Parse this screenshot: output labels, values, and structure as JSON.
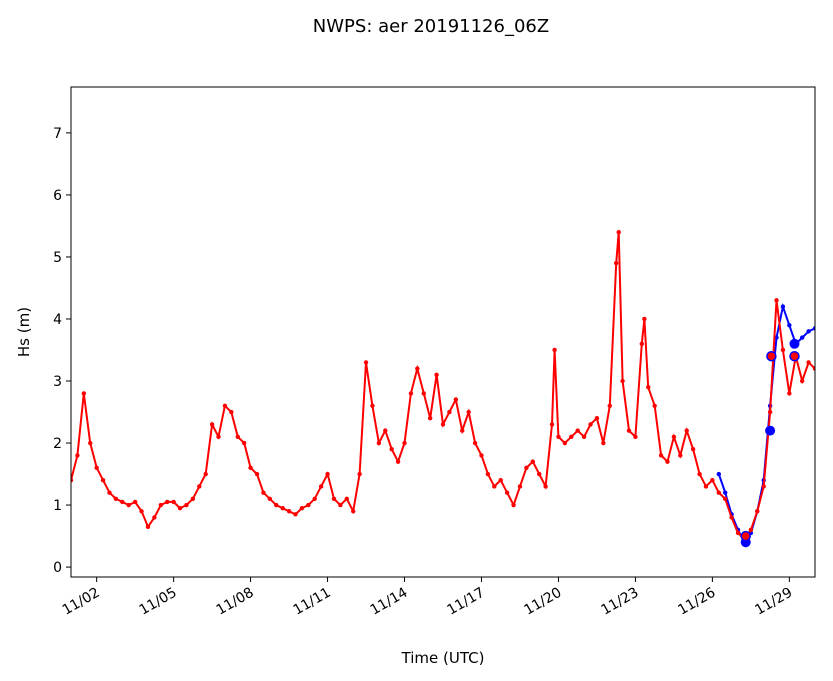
{
  "chart_data": {
    "type": "line",
    "title": "NWPS: aer 20191126_06Z",
    "xlabel": "Time (UTC)",
    "ylabel": "Hs (m)",
    "xlim": [
      1,
      30
    ],
    "ylim": [
      -0.16,
      7.74
    ],
    "xticks": [
      {
        "value": 2,
        "label": "11/02"
      },
      {
        "value": 5,
        "label": "11/05"
      },
      {
        "value": 8,
        "label": "11/08"
      },
      {
        "value": 11,
        "label": "11/11"
      },
      {
        "value": 14,
        "label": "11/14"
      },
      {
        "value": 17,
        "label": "11/17"
      },
      {
        "value": 20,
        "label": "11/20"
      },
      {
        "value": 23,
        "label": "11/23"
      },
      {
        "value": 26,
        "label": "11/26"
      },
      {
        "value": 29,
        "label": "11/29"
      }
    ],
    "yticks": [
      0,
      1,
      2,
      3,
      4,
      5,
      6,
      7
    ],
    "series": [
      {
        "color": "#0000ff",
        "line": true,
        "marker_size": 2.2,
        "x": [
          26.25,
          26.5,
          26.75,
          27.0,
          27.25,
          27.5,
          27.75,
          28.0,
          28.25,
          28.5,
          28.75,
          29.0,
          29.25,
          29.5,
          29.75,
          30.0
        ],
        "values": [
          1.5,
          1.2,
          0.85,
          0.6,
          0.4,
          0.55,
          0.9,
          1.4,
          2.6,
          3.7,
          4.2,
          3.9,
          3.6,
          3.7,
          3.8,
          3.85
        ]
      },
      {
        "color": "#ff0000",
        "line": true,
        "marker_size": 2.2,
        "x": [
          1.0,
          1.25,
          1.5,
          1.75,
          2.0,
          2.25,
          2.5,
          2.75,
          3.0,
          3.25,
          3.5,
          3.75,
          4.0,
          4.25,
          4.5,
          4.75,
          5.0,
          5.25,
          5.5,
          5.75,
          6.0,
          6.25,
          6.5,
          6.75,
          7.0,
          7.25,
          7.5,
          7.75,
          8.0,
          8.25,
          8.5,
          8.75,
          9.0,
          9.25,
          9.5,
          9.75,
          10.0,
          10.25,
          10.5,
          10.75,
          11.0,
          11.25,
          11.5,
          11.75,
          12.0,
          12.25,
          12.5,
          12.75,
          13.0,
          13.25,
          13.5,
          13.75,
          14.0,
          14.25,
          14.5,
          14.75,
          15.0,
          15.25,
          15.5,
          15.75,
          16.0,
          16.25,
          16.5,
          16.75,
          17.0,
          17.25,
          17.5,
          17.75,
          18.0,
          18.25,
          18.5,
          18.75,
          19.0,
          19.25,
          19.5,
          19.75,
          19.85,
          20.0,
          20.25,
          20.5,
          20.75,
          21.0,
          21.25,
          21.5,
          21.75,
          22.0,
          22.25,
          22.35,
          22.5,
          22.75,
          23.0,
          23.25,
          23.35,
          23.5,
          23.75,
          24.0,
          24.25,
          24.5,
          24.75,
          25.0,
          25.25,
          25.5,
          25.75,
          26.0,
          26.25,
          26.5,
          26.75,
          27.0,
          27.25,
          27.5,
          27.75,
          28.0,
          28.25,
          28.5,
          28.75,
          29.0,
          29.25,
          29.5,
          29.75,
          30.0
        ],
        "values": [
          1.4,
          1.8,
          2.8,
          2.0,
          1.6,
          1.4,
          1.2,
          1.1,
          1.05,
          1.0,
          1.05,
          0.9,
          0.65,
          0.8,
          1.0,
          1.05,
          1.05,
          0.95,
          1.0,
          1.1,
          1.3,
          1.5,
          2.3,
          2.1,
          2.6,
          2.5,
          2.1,
          2.0,
          1.6,
          1.5,
          1.2,
          1.1,
          1.0,
          0.95,
          0.9,
          0.85,
          0.95,
          1.0,
          1.1,
          1.3,
          1.5,
          1.1,
          1.0,
          1.1,
          0.9,
          1.5,
          3.3,
          2.6,
          2.0,
          2.2,
          1.9,
          1.7,
          2.0,
          2.8,
          3.2,
          2.8,
          2.4,
          3.1,
          2.3,
          2.5,
          2.7,
          2.2,
          2.5,
          2.0,
          1.8,
          1.5,
          1.3,
          1.4,
          1.2,
          1.0,
          1.3,
          1.6,
          1.7,
          1.5,
          1.3,
          2.3,
          3.5,
          2.1,
          2.0,
          2.1,
          2.2,
          2.1,
          2.3,
          2.4,
          2.0,
          2.6,
          4.9,
          5.4,
          3.0,
          2.2,
          2.1,
          3.6,
          4.0,
          2.9,
          2.6,
          1.8,
          1.7,
          2.1,
          1.8,
          2.2,
          1.9,
          1.5,
          1.3,
          1.4,
          1.2,
          1.1,
          0.8,
          0.55,
          0.45,
          0.6,
          0.9,
          1.3,
          2.5,
          4.3,
          3.5,
          2.8,
          3.4,
          3.0,
          3.3,
          3.2
        ]
      },
      {
        "color": "#0000ff",
        "line": false,
        "marker_size": 5,
        "x": [
          27.3,
          28.25,
          29.2
        ],
        "values": [
          0.4,
          2.2,
          3.6
        ]
      },
      {
        "color": "#ff0000",
        "edge": "#0000ff",
        "line": false,
        "marker_size": 4.5,
        "x": [
          27.3,
          28.3,
          29.2
        ],
        "values": [
          0.5,
          3.4,
          3.4
        ]
      }
    ]
  }
}
